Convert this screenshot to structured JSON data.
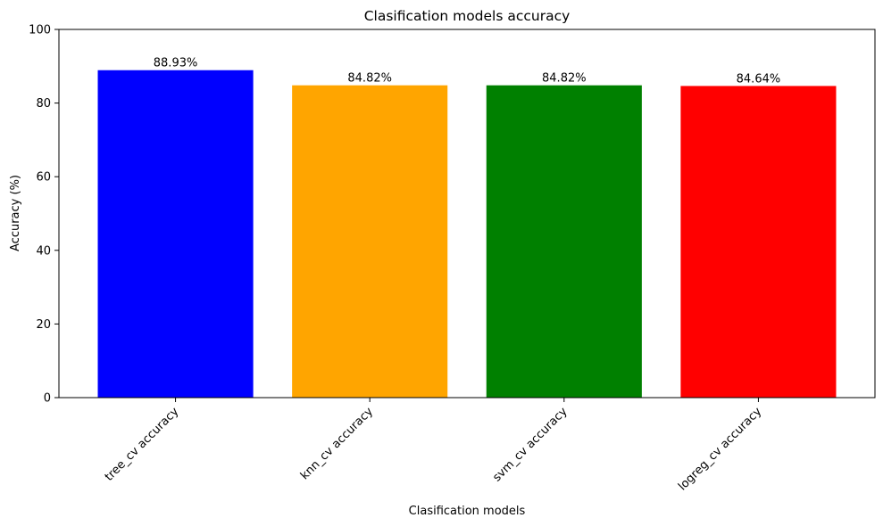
{
  "chart_data": {
    "type": "bar",
    "title": "Clasification models accuracy",
    "xlabel": "Clasification models",
    "ylabel": "Accuracy (%)",
    "categories": [
      "tree_cv accuracy",
      "knn_cv accuracy",
      "svm_cv accuracy",
      "logreg_cv accuracy"
    ],
    "values": [
      88.93,
      84.82,
      84.82,
      84.64
    ],
    "value_labels": [
      "88.93%",
      "84.82%",
      "84.82%",
      "84.64%"
    ],
    "colors": [
      "#0000ff",
      "#ffa500",
      "#008000",
      "#ff0000"
    ],
    "ylim": [
      0,
      100
    ],
    "yticks": [
      0,
      20,
      40,
      60,
      80,
      100
    ],
    "grid": false,
    "legend": "none",
    "xtick_rotation_deg": 45
  }
}
